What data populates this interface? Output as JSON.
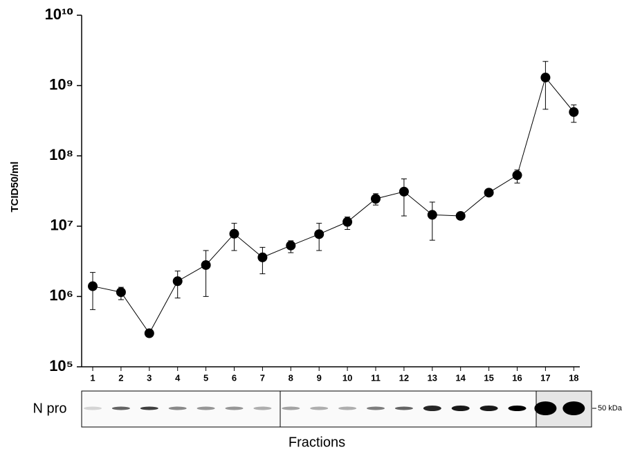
{
  "chart_data": {
    "type": "line",
    "y_label": "TCID50/ml",
    "x_label": "Fractions",
    "blot_label": "N pro",
    "marker_label": "50 kDa",
    "log_scale": true,
    "color": "#000000",
    "categories": [
      "1",
      "2",
      "3",
      "4",
      "5",
      "6",
      "7",
      "8",
      "9",
      "10",
      "11",
      "12",
      "13",
      "14",
      "15",
      "16",
      "17",
      "18"
    ],
    "values": [
      1400000,
      1150000,
      300000,
      1650000,
      2800000,
      7800000,
      3600000,
      5300000,
      7700000,
      11500000,
      24500000,
      31000000,
      14500000,
      14000000,
      30000000,
      53000000,
      1300000000,
      420000000
    ],
    "error_low": [
      650000,
      900000,
      null,
      950000,
      1000000,
      4500000,
      2100000,
      4200000,
      4500000,
      9000000,
      20000000,
      14000000,
      6300000,
      null,
      null,
      41000000,
      460000000,
      300000000
    ],
    "error_high": [
      2200000,
      1350000,
      null,
      2300000,
      4500000,
      11000000,
      5000000,
      6200000,
      11000000,
      13500000,
      29000000,
      47000000,
      22000000,
      null,
      null,
      63000000,
      2200000000,
      530000000
    ],
    "ylim": [
      100000,
      10000000000
    ],
    "yticks": [
      {
        "value": 100000,
        "label": "10⁵"
      },
      {
        "value": 1000000,
        "label": "10⁶"
      },
      {
        "value": 10000000,
        "label": "10⁷"
      },
      {
        "value": 100000000,
        "label": "10⁸"
      },
      {
        "value": 1000000000,
        "label": "10⁹"
      },
      {
        "value": 10000000000,
        "label": "10¹⁰"
      }
    ]
  }
}
